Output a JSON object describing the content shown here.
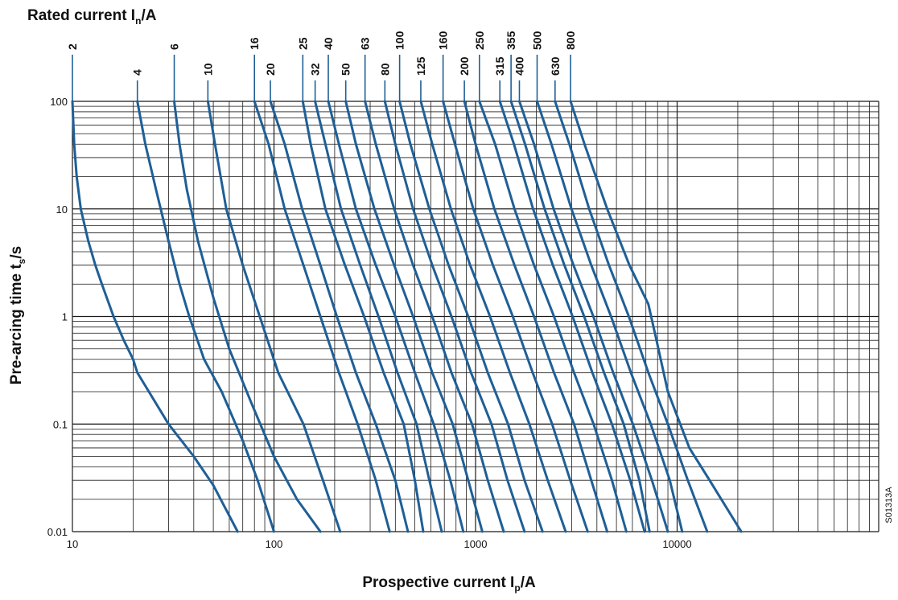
{
  "chart_data": {
    "type": "line",
    "title": "Rated current I",
    "title_subscript": "n",
    "title_suffix": "/A",
    "xlabel": "Prospective current I",
    "xlabel_subscript": "p",
    "xlabel_suffix": "/A",
    "ylabel": "Pre-arcing time t",
    "ylabel_subscript": "s",
    "ylabel_suffix": "/s",
    "x_scale": "log",
    "y_scale": "log",
    "xlim": [
      10,
      100000
    ],
    "ylim": [
      0.01,
      100
    ],
    "x_tick_labels": [
      "10",
      "100",
      "1000",
      "10000"
    ],
    "y_tick_labels": [
      "0.01",
      "0.1",
      "1",
      "10",
      "100"
    ],
    "grid": true,
    "line_color": "#1f5f96",
    "figure_code": "S01313A",
    "series": [
      {
        "name": "2",
        "points": [
          [
            10,
            100
          ],
          [
            10.2,
            40
          ],
          [
            10.5,
            20
          ],
          [
            11,
            10
          ],
          [
            12,
            5
          ],
          [
            13,
            3
          ],
          [
            14,
            2
          ],
          [
            16,
            1
          ],
          [
            18,
            0.6
          ],
          [
            20,
            0.4
          ],
          [
            21,
            0.3
          ],
          [
            30,
            0.1
          ],
          [
            40,
            0.05
          ],
          [
            50,
            0.027
          ],
          [
            66,
            0.01
          ]
        ]
      },
      {
        "name": "4",
        "points": [
          [
            21,
            100
          ],
          [
            23,
            40
          ],
          [
            26,
            15
          ],
          [
            30,
            5
          ],
          [
            34,
            2
          ],
          [
            38,
            1
          ],
          [
            45,
            0.4
          ],
          [
            55,
            0.2
          ],
          [
            70,
            0.07
          ],
          [
            83,
            0.03
          ],
          [
            100,
            0.01
          ]
        ]
      },
      {
        "name": "6",
        "points": [
          [
            32,
            100
          ],
          [
            34,
            40
          ],
          [
            37,
            15
          ],
          [
            42,
            5
          ],
          [
            50,
            1.5
          ],
          [
            60,
            0.5
          ],
          [
            78,
            0.15
          ],
          [
            100,
            0.05
          ],
          [
            130,
            0.02
          ],
          [
            170,
            0.01
          ]
        ]
      },
      {
        "name": "10",
        "points": [
          [
            47,
            100
          ],
          [
            51,
            40
          ],
          [
            58,
            10
          ],
          [
            70,
            3
          ],
          [
            85,
            1
          ],
          [
            105,
            0.3
          ],
          [
            140,
            0.1
          ],
          [
            175,
            0.03
          ],
          [
            213,
            0.01
          ]
        ]
      },
      {
        "name": "16",
        "points": [
          [
            80,
            100
          ],
          [
            94,
            40
          ],
          [
            113,
            10
          ],
          [
            140,
            3
          ],
          [
            170,
            1
          ],
          [
            210,
            0.3
          ],
          [
            260,
            0.1
          ],
          [
            320,
            0.03
          ],
          [
            375,
            0.01
          ]
        ]
      },
      {
        "name": "20",
        "points": [
          [
            96,
            100
          ],
          [
            113,
            40
          ],
          [
            138,
            10
          ],
          [
            170,
            3
          ],
          [
            205,
            1
          ],
          [
            255,
            0.3
          ],
          [
            320,
            0.1
          ],
          [
            400,
            0.03
          ],
          [
            462,
            0.01
          ]
        ]
      },
      {
        "name": "25",
        "points": [
          [
            139,
            100
          ],
          [
            152,
            40
          ],
          [
            180,
            10
          ],
          [
            225,
            3
          ],
          [
            280,
            1
          ],
          [
            350,
            0.3
          ],
          [
            440,
            0.1
          ],
          [
            500,
            0.03
          ],
          [
            550,
            0.01
          ]
        ]
      },
      {
        "name": "32",
        "points": [
          [
            160,
            100
          ],
          [
            180,
            40
          ],
          [
            215,
            10
          ],
          [
            268,
            3
          ],
          [
            330,
            1
          ],
          [
            410,
            0.3
          ],
          [
            510,
            0.1
          ],
          [
            590,
            0.03
          ],
          [
            680,
            0.01
          ]
        ]
      },
      {
        "name": "40",
        "points": [
          [
            186,
            100
          ],
          [
            210,
            40
          ],
          [
            255,
            10
          ],
          [
            320,
            3
          ],
          [
            400,
            1
          ],
          [
            500,
            0.3
          ],
          [
            620,
            0.1
          ],
          [
            750,
            0.03
          ],
          [
            870,
            0.01
          ]
        ]
      },
      {
        "name": "50",
        "points": [
          [
            227,
            100
          ],
          [
            255,
            40
          ],
          [
            315,
            10
          ],
          [
            395,
            3
          ],
          [
            490,
            1
          ],
          [
            610,
            0.3
          ],
          [
            770,
            0.1
          ],
          [
            920,
            0.03
          ],
          [
            1080,
            0.01
          ]
        ]
      },
      {
        "name": "63",
        "points": [
          [
            283,
            100
          ],
          [
            320,
            40
          ],
          [
            395,
            10
          ],
          [
            490,
            3
          ],
          [
            610,
            1
          ],
          [
            760,
            0.3
          ],
          [
            960,
            0.1
          ],
          [
            1150,
            0.03
          ],
          [
            1380,
            0.01
          ]
        ]
      },
      {
        "name": "80",
        "points": [
          [
            355,
            100
          ],
          [
            400,
            40
          ],
          [
            490,
            10
          ],
          [
            610,
            3
          ],
          [
            760,
            1
          ],
          [
            950,
            0.3
          ],
          [
            1200,
            0.1
          ],
          [
            1440,
            0.03
          ],
          [
            1750,
            0.01
          ]
        ]
      },
      {
        "name": "100",
        "points": [
          [
            420,
            100
          ],
          [
            475,
            40
          ],
          [
            590,
            10
          ],
          [
            735,
            3
          ],
          [
            920,
            1
          ],
          [
            1150,
            0.3
          ],
          [
            1450,
            0.1
          ],
          [
            1750,
            0.03
          ],
          [
            2150,
            0.01
          ]
        ]
      },
      {
        "name": "125",
        "points": [
          [
            535,
            100
          ],
          [
            610,
            40
          ],
          [
            755,
            10
          ],
          [
            940,
            3
          ],
          [
            1180,
            1
          ],
          [
            1480,
            0.3
          ],
          [
            1850,
            0.1
          ],
          [
            2280,
            0.03
          ],
          [
            2800,
            0.01
          ]
        ]
      },
      {
        "name": "160",
        "points": [
          [
            690,
            100
          ],
          [
            790,
            40
          ],
          [
            975,
            10
          ],
          [
            1220,
            3
          ],
          [
            1530,
            1
          ],
          [
            1920,
            0.3
          ],
          [
            2400,
            0.1
          ],
          [
            2950,
            0.03
          ],
          [
            3600,
            0.01
          ]
        ]
      },
      {
        "name": "200",
        "points": [
          [
            880,
            100
          ],
          [
            1000,
            40
          ],
          [
            1240,
            10
          ],
          [
            1560,
            3
          ],
          [
            1950,
            1
          ],
          [
            2450,
            0.3
          ],
          [
            3080,
            0.1
          ],
          [
            3750,
            0.03
          ],
          [
            4500,
            0.01
          ]
        ]
      },
      {
        "name": "250",
        "points": [
          [
            1045,
            100
          ],
          [
            1250,
            40
          ],
          [
            1560,
            10
          ],
          [
            1950,
            3
          ],
          [
            2450,
            1
          ],
          [
            3080,
            0.3
          ],
          [
            3850,
            0.1
          ],
          [
            4750,
            0.03
          ],
          [
            5600,
            0.01
          ]
        ]
      },
      {
        "name": "315",
        "points": [
          [
            1320,
            100
          ],
          [
            1550,
            40
          ],
          [
            1930,
            10
          ],
          [
            2420,
            3
          ],
          [
            3030,
            1
          ],
          [
            3800,
            0.3
          ],
          [
            4750,
            0.1
          ],
          [
            5850,
            0.03
          ],
          [
            6900,
            0.01
          ]
        ]
      },
      {
        "name": "355",
        "points": [
          [
            1500,
            100
          ],
          [
            1760,
            40
          ],
          [
            2200,
            10
          ],
          [
            2760,
            3
          ],
          [
            3460,
            1
          ],
          [
            4340,
            0.3
          ],
          [
            5430,
            0.1
          ],
          [
            6500,
            0.03
          ],
          [
            7300,
            0.01
          ]
        ]
      },
      {
        "name": "400",
        "points": [
          [
            1650,
            100
          ],
          [
            1950,
            40
          ],
          [
            2440,
            10
          ],
          [
            3060,
            3
          ],
          [
            3840,
            1
          ],
          [
            4820,
            0.3
          ],
          [
            6030,
            0.1
          ],
          [
            7500,
            0.03
          ],
          [
            9000,
            0.01
          ]
        ]
      },
      {
        "name": "500",
        "points": [
          [
            2020,
            100
          ],
          [
            2380,
            40
          ],
          [
            2990,
            10
          ],
          [
            3750,
            3
          ],
          [
            4700,
            1
          ],
          [
            5900,
            0.3
          ],
          [
            7400,
            0.1
          ],
          [
            9200,
            0.03
          ],
          [
            10600,
            0.01
          ]
        ]
      },
      {
        "name": "630",
        "points": [
          [
            2480,
            100
          ],
          [
            2920,
            40
          ],
          [
            3660,
            10
          ],
          [
            4590,
            3
          ],
          [
            5760,
            1
          ],
          [
            7200,
            0.3
          ],
          [
            9000,
            0.1
          ],
          [
            11300,
            0.03
          ],
          [
            14100,
            0.01
          ]
        ]
      },
      {
        "name": "800",
        "points": [
          [
            2960,
            100
          ],
          [
            3470,
            40
          ],
          [
            4500,
            10
          ],
          [
            5800,
            3
          ],
          [
            7200,
            1.3
          ],
          [
            7900,
            0.6
          ],
          [
            9000,
            0.2
          ],
          [
            11500,
            0.06
          ],
          [
            14500,
            0.03
          ],
          [
            20800,
            0.01
          ]
        ]
      }
    ]
  }
}
